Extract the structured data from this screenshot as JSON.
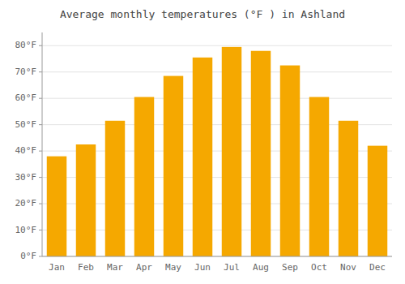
{
  "chart_data": {
    "type": "bar",
    "title": "Average monthly temperatures (°F ) in Ashland",
    "categories": [
      "Jan",
      "Feb",
      "Mar",
      "Apr",
      "May",
      "Jun",
      "Jul",
      "Aug",
      "Sep",
      "Oct",
      "Nov",
      "Dec"
    ],
    "values": [
      38,
      42.5,
      51.5,
      60.5,
      68.5,
      75.5,
      79.5,
      78,
      72.5,
      60.5,
      51.5,
      42
    ],
    "color": "#F5A800",
    "ylim": [
      0,
      85
    ],
    "yticks": [
      {
        "value": 0,
        "label": "0°F"
      },
      {
        "value": 10,
        "label": "10°F"
      },
      {
        "value": 20,
        "label": "20°F"
      },
      {
        "value": 30,
        "label": "30°F"
      },
      {
        "value": 40,
        "label": "40°F"
      },
      {
        "value": 50,
        "label": "50°F"
      },
      {
        "value": 60,
        "label": "60°F"
      },
      {
        "value": 70,
        "label": "70°F"
      },
      {
        "value": 80,
        "label": "80°F"
      }
    ],
    "grid": true
  }
}
